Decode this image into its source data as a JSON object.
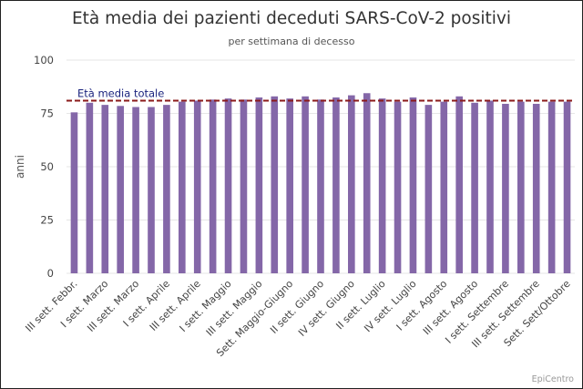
{
  "chart_data": {
    "type": "bar",
    "title": "Età media dei pazienti deceduti SARS-CoV-2 positivi",
    "subtitle": "per settimana di decesso",
    "xlabel": "",
    "ylabel": "anni",
    "ylim": [
      0,
      100
    ],
    "yticks": [
      0,
      25,
      50,
      75,
      100
    ],
    "grid": true,
    "categories": [
      "III sett. Febbr.",
      "",
      "I sett. Marzo",
      "",
      "III sett. Marzo",
      "",
      "I sett. Aprile",
      "",
      "III sett. Aprile",
      "",
      "I sett. Maggio",
      "",
      "III sett. Maggio",
      "",
      "Sett. Maggio-Giugno",
      "",
      "II sett. Giugno",
      "",
      "IV sett. Giugno",
      "",
      "II sett. Luglio",
      "",
      "IV sett. Luglio",
      "",
      "I sett. Agosto",
      "",
      "III sett. Agosto",
      "",
      "I sett. Settembre",
      "",
      "III sett. Settembre",
      "",
      "Sett. Sett/Ottobre"
    ],
    "values": [
      75.5,
      80.0,
      79.0,
      78.5,
      78.0,
      78.0,
      79.0,
      80.5,
      81.0,
      81.5,
      82.0,
      81.5,
      82.5,
      83.0,
      82.0,
      83.0,
      81.5,
      82.5,
      83.5,
      84.5,
      82.0,
      80.5,
      82.5,
      79.0,
      80.5,
      83.0,
      80.0,
      81.0,
      79.5,
      80.5,
      79.5,
      80.5,
      80.5
    ],
    "bar_color": "#8467a8",
    "reference_line": {
      "label": "Età media totale",
      "value": 81,
      "color": "#8b1a1a",
      "label_color": "#1a237e"
    }
  },
  "footer": {
    "source": "EpiCentro"
  }
}
